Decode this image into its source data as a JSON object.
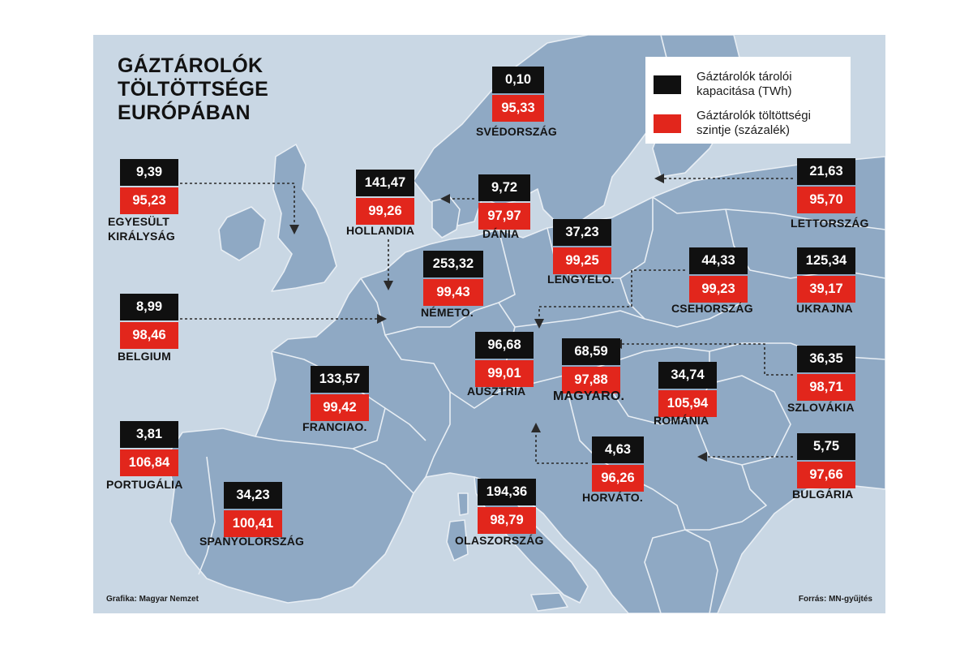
{
  "title_lines": [
    "GÁZTÁROLÓK",
    "TÖLTÖTTSÉGE",
    "EURÓPÁBAN"
  ],
  "legend": {
    "capacity": {
      "label": "Gáztárolók tárolói kapacitása (TWh)",
      "color": "#101010"
    },
    "fill": {
      "label": "Gáztárolók töltöttségi szintje (százalék)",
      "color": "#e2261c"
    }
  },
  "countries": {
    "sweden": {
      "name": "SVÉDORSZÁG",
      "capacity": "0,10",
      "fill": "95,33"
    },
    "uk": {
      "name_lines": [
        "EGYESÜLT",
        "KIRÁLYSÁG"
      ],
      "capacity": "9,39",
      "fill": "95,23"
    },
    "netherlands": {
      "name": "HOLLANDIA",
      "capacity": "141,47",
      "fill": "99,26"
    },
    "denmark": {
      "name": "DÁNIA",
      "capacity": "9,72",
      "fill": "97,97"
    },
    "latvia": {
      "name": "LETTORSZÁG",
      "capacity": "21,63",
      "fill": "95,70"
    },
    "poland": {
      "name": "LENGYELO.",
      "capacity": "37,23",
      "fill": "99,25"
    },
    "germany": {
      "name": "NÉMETO.",
      "capacity": "253,32",
      "fill": "99,43"
    },
    "czechia": {
      "name": "CSEHORSZÁG",
      "capacity": "44,33",
      "fill": "99,23"
    },
    "ukraine": {
      "name": "UKRAJNA",
      "capacity": "125,34",
      "fill": "39,17"
    },
    "belgium": {
      "name": "BELGIUM",
      "capacity": "8,99",
      "fill": "98,46"
    },
    "austria": {
      "name": "AUSZTRIA",
      "capacity": "96,68",
      "fill": "99,01"
    },
    "hungary": {
      "name": "MAGYARO.",
      "capacity": "68,59",
      "fill": "97,88"
    },
    "slovakia": {
      "name": "SZLOVÁKIA",
      "capacity": "36,35",
      "fill": "98,71"
    },
    "romania": {
      "name": "ROMÁNIA",
      "capacity": "34,74",
      "fill": "105,94"
    },
    "france": {
      "name": "FRANCIAO.",
      "capacity": "133,57",
      "fill": "99,42"
    },
    "portugal": {
      "name": "PORTUGÁLIA",
      "capacity": "3,81",
      "fill": "106,84"
    },
    "croatia": {
      "name": "HORVÁTO.",
      "capacity": "4,63",
      "fill": "96,26"
    },
    "bulgaria": {
      "name": "BULGÁRIA",
      "capacity": "5,75",
      "fill": "97,66"
    },
    "spain": {
      "name": "SPANYOLORSZÁG",
      "capacity": "34,23",
      "fill": "100,41"
    },
    "italy": {
      "name": "OLASZORSZÁG",
      "capacity": "194,36",
      "fill": "98,79"
    }
  },
  "credits": {
    "left": "Grafika: Magyar Nemzet",
    "right": "Forrás: MN-gyűjtés"
  },
  "colors": {
    "sea": "#c9d7e4",
    "land": "#8fa9c4",
    "border": "#e8eef4",
    "arrow": "#2a2a2a"
  }
}
